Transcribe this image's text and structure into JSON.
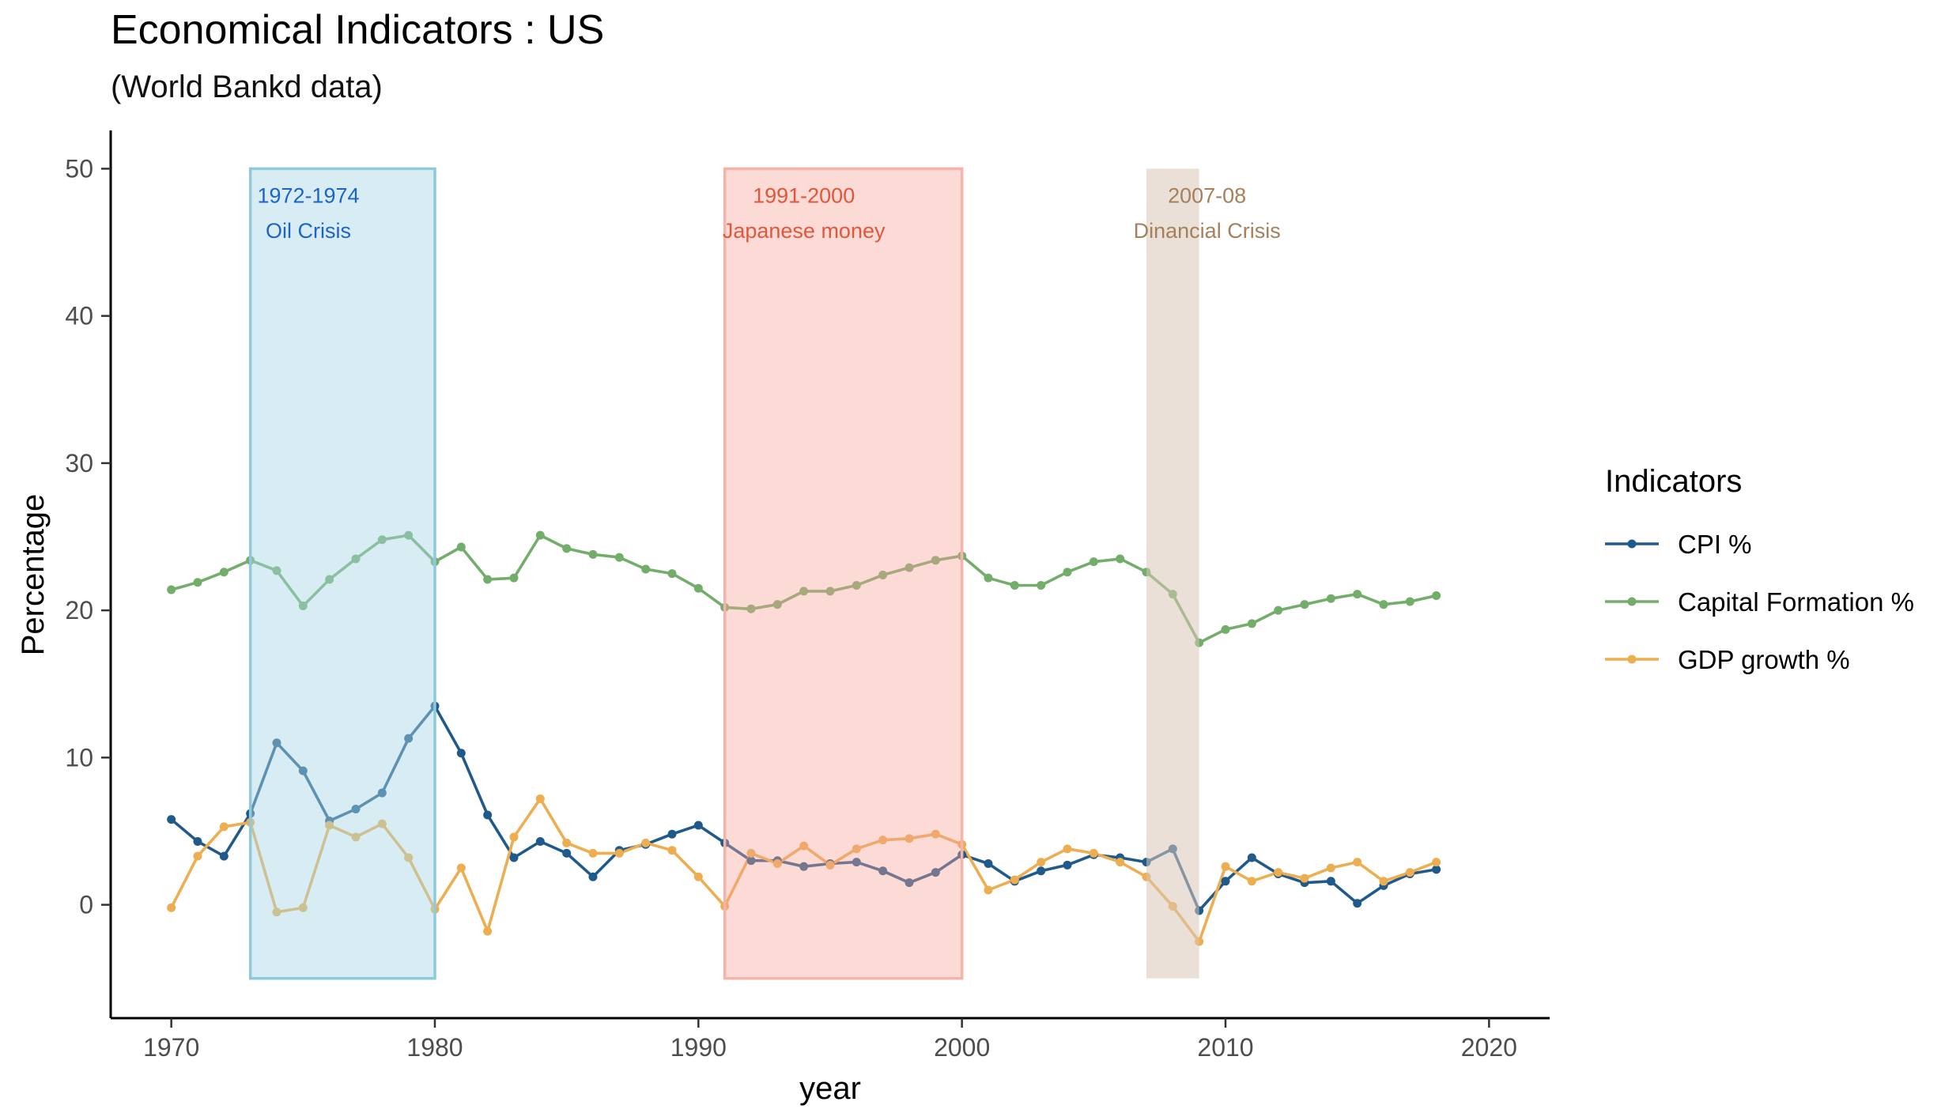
{
  "chart_data": {
    "type": "line",
    "title": "Economical Indicators : US",
    "subtitle": "(World Bankd data)",
    "xlabel": "year",
    "ylabel": "Percentage",
    "xlim": [
      1967.7,
      2022.3
    ],
    "ylim": [
      -7.7,
      52.6
    ],
    "x_ticks": [
      1970,
      1980,
      1990,
      2000,
      2010,
      2020
    ],
    "y_ticks": [
      0,
      10,
      20,
      30,
      40,
      50
    ],
    "grid": false,
    "legend": {
      "title": "Indicators",
      "position": "right"
    },
    "x": [
      1970,
      1971,
      1972,
      1973,
      1974,
      1975,
      1976,
      1977,
      1978,
      1979,
      1980,
      1981,
      1982,
      1983,
      1984,
      1985,
      1986,
      1987,
      1988,
      1989,
      1990,
      1991,
      1992,
      1993,
      1994,
      1995,
      1996,
      1997,
      1998,
      1999,
      2000,
      2001,
      2002,
      2003,
      2004,
      2005,
      2006,
      2007,
      2008,
      2009,
      2010,
      2011,
      2012,
      2013,
      2014,
      2015,
      2016,
      2017,
      2018
    ],
    "series": [
      {
        "name": "CPI %",
        "color": "#1f5a8a",
        "values": [
          5.8,
          4.3,
          3.3,
          6.2,
          11.0,
          9.1,
          5.7,
          6.5,
          7.6,
          11.3,
          13.5,
          10.3,
          6.1,
          3.2,
          4.3,
          3.5,
          1.9,
          3.7,
          4.1,
          4.8,
          5.4,
          4.2,
          3.0,
          3.0,
          2.6,
          2.8,
          2.9,
          2.3,
          1.5,
          2.2,
          3.4,
          2.8,
          1.6,
          2.3,
          2.7,
          3.4,
          3.2,
          2.9,
          3.8,
          -0.4,
          1.6,
          3.2,
          2.1,
          1.5,
          1.6,
          0.1,
          1.3,
          2.1,
          2.4
        ]
      },
      {
        "name": "Capital Formation %",
        "color": "#72ad6a",
        "values": [
          21.4,
          21.9,
          22.6,
          23.4,
          22.7,
          20.3,
          22.1,
          23.5,
          24.8,
          25.1,
          23.3,
          24.3,
          22.1,
          22.2,
          25.1,
          24.2,
          23.8,
          23.6,
          22.8,
          22.5,
          21.5,
          20.2,
          20.1,
          20.4,
          21.3,
          21.3,
          21.7,
          22.4,
          22.9,
          23.4,
          23.7,
          22.2,
          21.7,
          21.7,
          22.6,
          23.3,
          23.5,
          22.6,
          21.1,
          17.8,
          18.7,
          19.1,
          20.0,
          20.4,
          20.8,
          21.1,
          20.4,
          20.6,
          21.0
        ]
      },
      {
        "name": "GDP growth %",
        "color": "#ecae50",
        "values": [
          -0.2,
          3.3,
          5.3,
          5.6,
          -0.5,
          -0.2,
          5.4,
          4.6,
          5.5,
          3.2,
          -0.3,
          2.5,
          -1.8,
          4.6,
          7.2,
          4.2,
          3.5,
          3.5,
          4.2,
          3.7,
          1.9,
          -0.1,
          3.5,
          2.8,
          4.0,
          2.7,
          3.8,
          4.4,
          4.5,
          4.8,
          4.1,
          1.0,
          1.7,
          2.9,
          3.8,
          3.5,
          2.9,
          1.9,
          -0.1,
          -2.5,
          2.6,
          1.6,
          2.2,
          1.8,
          2.5,
          2.9,
          1.6,
          2.2,
          2.9
        ]
      }
    ],
    "annotations": [
      {
        "x_range": [
          1973,
          1980
        ],
        "y_range": [
          -5,
          50
        ],
        "fill": "#a9d6e5",
        "fill_opacity": 0.45,
        "stroke": "#8ecadb",
        "line1": "1972-1974",
        "line2": "Oil Crisis",
        "text_color": "#1e64c8",
        "label_x": 1975.2
      },
      {
        "x_range": [
          1991,
          2000
        ],
        "y_range": [
          -5,
          50
        ],
        "fill": "#f7a399",
        "fill_opacity": 0.4,
        "stroke": "#f4b4ab",
        "line1": "1991-2000",
        "line2": "Japanese money",
        "text_color": "#e0573c",
        "label_x": 1994.0
      },
      {
        "x_range": [
          2007,
          2009
        ],
        "y_range": [
          -5,
          50
        ],
        "fill": "#d8c7b6",
        "fill_opacity": 0.55,
        "stroke": "none",
        "line1": "2007-08",
        "line2": "Dinancial Crisis",
        "text_color": "#a5805c",
        "label_x": 2009.3
      }
    ]
  }
}
